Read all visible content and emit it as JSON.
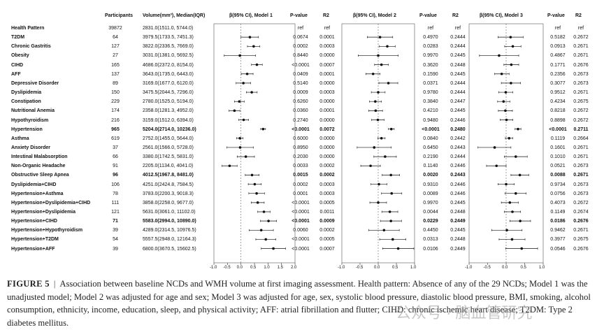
{
  "headers": {
    "participants": "Participants",
    "volume": "Volume(mm³), Median(IQR)",
    "model1": "β(95% CI), Model 1",
    "model2": "β(95% CI), Model 2",
    "model3": "β(95% CI), Model 3",
    "pvalue": "P-value",
    "r2": "R2"
  },
  "rows": [
    {
      "name": "Health Pattern",
      "n": "39872",
      "vol": "2831.0(1511.0, 5744.0)",
      "bold": false,
      "m1": {
        "b": null,
        "p": "ref",
        "r2": "ref"
      },
      "m2": {
        "b": null,
        "p": "ref",
        "r2": "ref"
      },
      "m3": {
        "b": null,
        "p": "ref",
        "r2": "ref"
      }
    },
    {
      "name": "T2DM",
      "n": "64",
      "vol": "3979.5(1733.5, 7451.3)",
      "bold": false,
      "m1": {
        "b": 0.33,
        "lo": 0.0,
        "hi": 0.65,
        "p": "0.0674",
        "r2": "0.0001"
      },
      "m2": {
        "b": 0.05,
        "lo": -0.3,
        "hi": 0.4,
        "p": "0.4970",
        "r2": "0.2444"
      },
      "m3": {
        "b": 0.12,
        "lo": -0.22,
        "hi": 0.46,
        "p": "0.5182",
        "r2": "0.2672"
      }
    },
    {
      "name": "Chronic Gastritis",
      "n": "127",
      "vol": "3822.0(2336.5, 7669.0)",
      "bold": false,
      "m1": {
        "b": 0.47,
        "lo": 0.24,
        "hi": 0.7,
        "p": "0.0002",
        "r2": "0.0003"
      },
      "m2": {
        "b": 0.25,
        "lo": 0.03,
        "hi": 0.47,
        "p": "0.0283",
        "r2": "0.2444"
      },
      "m3": {
        "b": 0.18,
        "lo": -0.04,
        "hi": 0.4,
        "p": "0.0913",
        "r2": "0.2671"
      }
    },
    {
      "name": "Obesity",
      "n": "27",
      "vol": "3031.0(1381.0, 5692.5)",
      "bold": false,
      "m1": {
        "b": -0.04,
        "lo": -0.62,
        "hi": 0.54,
        "p": "0.8440",
        "r2": "0.0000"
      },
      "m2": {
        "b": 0.0,
        "lo": -0.55,
        "hi": 0.55,
        "p": "0.9970",
        "r2": "0.2445"
      },
      "m3": {
        "b": -0.19,
        "lo": -0.72,
        "hi": 0.34,
        "p": "0.4867",
        "r2": "0.2671"
      }
    },
    {
      "name": "CIHD",
      "n": "165",
      "vol": "4686.0(2372.0, 8154.0)",
      "bold": false,
      "m1": {
        "b": 0.59,
        "lo": 0.39,
        "hi": 0.79,
        "p": "<0.0001",
        "r2": "0.0007"
      },
      "m2": {
        "b": 0.09,
        "lo": -0.1,
        "hi": 0.28,
        "p": "0.3620",
        "r2": "0.2448"
      },
      "m3": {
        "b": 0.14,
        "lo": -0.06,
        "hi": 0.34,
        "p": "0.1771",
        "r2": "0.2676"
      }
    },
    {
      "name": "AFF",
      "n": "137",
      "vol": "3643.0(1735.0, 6443.0)",
      "bold": false,
      "m1": {
        "b": 0.23,
        "lo": 0.01,
        "hi": 0.45,
        "p": "0.0409",
        "r2": "0.0001"
      },
      "m2": {
        "b": -0.14,
        "lo": -0.34,
        "hi": 0.05,
        "p": "0.1590",
        "r2": "0.2445"
      },
      "m3": {
        "b": -0.12,
        "lo": -0.31,
        "hi": 0.08,
        "p": "0.2356",
        "r2": "0.2673"
      }
    },
    {
      "name": "Depressive Disorder",
      "n": "89",
      "vol": "3169.0(1677.0, 6120.0)",
      "bold": false,
      "m1": {
        "b": 0.09,
        "lo": -0.18,
        "hi": 0.36,
        "p": "0.5140",
        "r2": "0.0000"
      },
      "m2": {
        "b": 0.28,
        "lo": 0.02,
        "hi": 0.54,
        "p": "0.0371",
        "r2": "0.2444"
      },
      "m3": {
        "b": 0.13,
        "lo": -0.13,
        "hi": 0.39,
        "p": "0.3077",
        "r2": "0.2673"
      }
    },
    {
      "name": "Dyslipidemia",
      "n": "150",
      "vol": "3475.5(2044.5, 7296.0)",
      "bold": false,
      "m1": {
        "b": 0.4,
        "lo": 0.2,
        "hi": 0.6,
        "p": "0.0009",
        "r2": "0.0003"
      },
      "m2": {
        "b": 0.0,
        "lo": -0.19,
        "hi": 0.19,
        "p": "0.9780",
        "r2": "0.2444"
      },
      "m3": {
        "b": -0.01,
        "lo": -0.2,
        "hi": 0.18,
        "p": "0.9512",
        "r2": "0.2671"
      }
    },
    {
      "name": "Constipation",
      "n": "229",
      "vol": "2780.0(1525.0, 5194.0)",
      "bold": false,
      "m1": {
        "b": -0.06,
        "lo": -0.24,
        "hi": 0.12,
        "p": "0.6260",
        "r2": "0.0000"
      },
      "m2": {
        "b": -0.08,
        "lo": -0.24,
        "hi": 0.09,
        "p": "0.3840",
        "r2": "0.2447"
      },
      "m3": {
        "b": -0.07,
        "lo": -0.23,
        "hi": 0.1,
        "p": "0.4234",
        "r2": "0.2675"
      }
    },
    {
      "name": "Nutritional Anemia",
      "n": "174",
      "vol": "2358.0(1281.3, 4952.0)",
      "bold": false,
      "m1": {
        "b": -0.24,
        "lo": -0.44,
        "hi": -0.04,
        "p": "0.0360",
        "r2": "0.0001"
      },
      "m2": {
        "b": -0.07,
        "lo": -0.26,
        "hi": 0.12,
        "p": "0.4210",
        "r2": "0.2445"
      },
      "m3": {
        "b": -0.02,
        "lo": -0.21,
        "hi": 0.17,
        "p": "0.8218",
        "r2": "0.2672"
      }
    },
    {
      "name": "Hypothyroidism",
      "n": "216",
      "vol": "3159.0(1512.0, 6394.0)",
      "bold": false,
      "m1": {
        "b": 0.1,
        "lo": -0.08,
        "hi": 0.28,
        "p": "0.2740",
        "r2": "0.0000"
      },
      "m2": {
        "b": -0.01,
        "lo": -0.18,
        "hi": 0.16,
        "p": "0.9480",
        "r2": "0.2446"
      },
      "m3": {
        "b": 0.01,
        "lo": -0.16,
        "hi": 0.18,
        "p": "0.8898",
        "r2": "0.2672"
      }
    },
    {
      "name": "Hypertension",
      "n": "965",
      "vol": "5204.0(2714.0, 10236.0)",
      "bold": true,
      "m1": {
        "b": 0.82,
        "lo": 0.73,
        "hi": 0.91,
        "p": "<0.0001",
        "r2": "0.0072"
      },
      "m2": {
        "b": 0.36,
        "lo": 0.28,
        "hi": 0.44,
        "p": "<0.0001",
        "r2": "0.2480"
      },
      "m3": {
        "b": 0.32,
        "lo": 0.24,
        "hi": 0.4,
        "p": "<0.0001",
        "r2": "0.2711"
      }
    },
    {
      "name": "Asthma",
      "n": "619",
      "vol": "2752.0(1455.0, 5644.0)",
      "bold": false,
      "m1": {
        "b": -0.04,
        "lo": -0.16,
        "hi": 0.08,
        "p": "0.6000",
        "r2": "0.0000"
      },
      "m2": {
        "b": 0.09,
        "lo": -0.01,
        "hi": 0.19,
        "p": "0.0840",
        "r2": "0.2442"
      },
      "m3": {
        "b": 0.08,
        "lo": -0.02,
        "hi": 0.18,
        "p": "0.1119",
        "r2": "0.2664"
      }
    },
    {
      "name": "Anxiety Disorder",
      "n": "37",
      "vol": "2561.0(1566.0, 5728.0)",
      "bold": false,
      "m1": {
        "b": -0.03,
        "lo": -0.52,
        "hi": 0.46,
        "p": "0.8950",
        "r2": "0.0000"
      },
      "m2": {
        "b": -0.11,
        "lo": -0.58,
        "hi": 0.36,
        "p": "0.6450",
        "r2": "0.2443"
      },
      "m3": {
        "b": -0.31,
        "lo": -0.76,
        "hi": 0.13,
        "p": "0.1601",
        "r2": "0.2671"
      }
    },
    {
      "name": "Intestinal Malabsorption",
      "n": "66",
      "vol": "3380.0(1742.5, 5831.0)",
      "bold": false,
      "m1": {
        "b": 0.18,
        "lo": -0.14,
        "hi": 0.5,
        "p": "0.2030",
        "r2": "0.0000"
      },
      "m2": {
        "b": 0.19,
        "lo": -0.12,
        "hi": 0.5,
        "p": "0.2190",
        "r2": "0.2444"
      },
      "m3": {
        "b": 0.26,
        "lo": -0.05,
        "hi": 0.57,
        "p": "0.1010",
        "r2": "0.2671"
      }
    },
    {
      "name": "Non-Organic Headache",
      "n": "91",
      "vol": "2205.0(1134.0, 4041.0)",
      "bold": false,
      "m1": {
        "b": -0.42,
        "lo": -0.7,
        "hi": -0.14,
        "p": "0.0033",
        "r2": "0.0002"
      },
      "m2": {
        "b": -0.21,
        "lo": -0.48,
        "hi": 0.06,
        "p": "0.1140",
        "r2": "0.2446"
      },
      "m3": {
        "b": -0.26,
        "lo": -0.53,
        "hi": 0.0,
        "p": "0.0521",
        "r2": "0.2673"
      }
    },
    {
      "name": "Obstructive Sleep Apnea",
      "n": "96",
      "vol": "4012.5(1967.8, 8481.0)",
      "bold": true,
      "m1": {
        "b": 0.41,
        "lo": 0.16,
        "hi": 0.67,
        "p": "0.0015",
        "r2": "0.0002"
      },
      "m2": {
        "b": 0.35,
        "lo": 0.11,
        "hi": 0.59,
        "p": "0.0020",
        "r2": "0.2443"
      },
      "m3": {
        "b": 0.37,
        "lo": 0.13,
        "hi": 0.61,
        "p": "0.0088",
        "r2": "0.2671"
      }
    },
    {
      "name": "Dyslipidemia+CIHD",
      "n": "106",
      "vol": "4251.0(2424.8, 7584.5)",
      "bold": false,
      "m1": {
        "b": 0.51,
        "lo": 0.27,
        "hi": 0.75,
        "p": "0.0002",
        "r2": "0.0003"
      },
      "m2": {
        "b": 0.02,
        "lo": -0.2,
        "hi": 0.24,
        "p": "0.9310",
        "r2": "0.2446"
      },
      "m3": {
        "b": 0.0,
        "lo": -0.22,
        "hi": 0.22,
        "p": "0.9734",
        "r2": "0.2673"
      }
    },
    {
      "name": "Hypertension+Asthma",
      "n": "78",
      "vol": "3783.0(2200.3, 9018.3)",
      "bold": false,
      "m1": {
        "b": 0.58,
        "lo": 0.29,
        "hi": 0.87,
        "p": "0.0001",
        "r2": "0.0003"
      },
      "m2": {
        "b": 0.37,
        "lo": 0.09,
        "hi": 0.65,
        "p": "0.0089",
        "r2": "0.2446"
      },
      "m3": {
        "b": 0.26,
        "lo": -0.03,
        "hi": 0.54,
        "p": "0.0756",
        "r2": "0.2673"
      }
    },
    {
      "name": "Hypertension+Dyslipidemia+CIHD",
      "n": "111",
      "vol": "3858.0(2258.0, 9677.0)",
      "bold": false,
      "m1": {
        "b": 0.62,
        "lo": 0.38,
        "hi": 0.86,
        "p": "<0.0001",
        "r2": "0.0005"
      },
      "m2": {
        "b": 0.0,
        "lo": -0.23,
        "hi": 0.23,
        "p": "0.9970",
        "r2": "0.2445"
      },
      "m3": {
        "b": 0.1,
        "lo": -0.13,
        "hi": 0.33,
        "p": "0.4073",
        "r2": "0.2672"
      }
    },
    {
      "name": "Hypertension+Dyslipidemia",
      "n": "121",
      "vol": "5631.0(3061.0, 11102.0)",
      "bold": false,
      "m1": {
        "b": 0.85,
        "lo": 0.62,
        "hi": 1.08,
        "p": "<0.0001",
        "r2": "0.0011"
      },
      "m2": {
        "b": 0.32,
        "lo": 0.1,
        "hi": 0.54,
        "p": "0.0044",
        "r2": "0.2448"
      },
      "m3": {
        "b": 0.17,
        "lo": -0.05,
        "hi": 0.39,
        "p": "0.1149",
        "r2": "0.2674"
      }
    },
    {
      "name": "Hypertension+CIHD",
      "n": "71",
      "vol": "5583.0(2994.0, 10890.0)",
      "bold": true,
      "m1": {
        "b": 1.02,
        "lo": 0.72,
        "hi": 1.32,
        "p": "<0.0001",
        "r2": "0.0009"
      },
      "m2": {
        "b": 0.35,
        "lo": 0.06,
        "hi": 0.64,
        "p": "0.0229",
        "r2": "0.2449"
      },
      "m3": {
        "b": 0.38,
        "lo": 0.1,
        "hi": 0.66,
        "p": "0.0186",
        "r2": "0.2676"
      }
    },
    {
      "name": "Hypertension+Hypothyroidism",
      "n": "39",
      "vol": "4289.0(2314.5, 10976.5)",
      "bold": false,
      "m1": {
        "b": 0.75,
        "lo": 0.3,
        "hi": 1.2,
        "p": "0.0060",
        "r2": "0.0002"
      },
      "m2": {
        "b": 0.16,
        "lo": -0.26,
        "hi": 0.58,
        "p": "0.4450",
        "r2": "0.2445"
      },
      "m3": {
        "b": 0.02,
        "lo": -0.39,
        "hi": 0.43,
        "p": "0.9462",
        "r2": "0.2671"
      }
    },
    {
      "name": "Hypertension+T2DM",
      "n": "54",
      "vol": "5557.5(2948.0, 12164.3)",
      "bold": false,
      "m1": {
        "b": 0.92,
        "lo": 0.55,
        "hi": 1.29,
        "p": "<0.0001",
        "r2": "0.0005"
      },
      "m2": {
        "b": 0.4,
        "lo": 0.04,
        "hi": 0.76,
        "p": "0.0313",
        "r2": "0.2448"
      },
      "m3": {
        "b": 0.16,
        "lo": -0.19,
        "hi": 0.51,
        "p": "0.3977",
        "r2": "0.2675"
      }
    },
    {
      "name": "Hypertension+AFF",
      "n": "39",
      "vol": "6800.0(3670.5, 15602.5)",
      "bold": false,
      "m1": {
        "b": 1.2,
        "lo": 0.75,
        "hi": 1.65,
        "p": "<0.0001",
        "r2": "0.0007"
      },
      "m2": {
        "b": 0.55,
        "lo": 0.12,
        "hi": 0.98,
        "p": "0.0106",
        "r2": "0.2449"
      },
      "m3": {
        "b": 0.42,
        "lo": -0.01,
        "hi": 0.85,
        "p": "0.0546",
        "r2": "0.2676"
      }
    }
  ],
  "chart_data": [
    {
      "type": "scatter",
      "title": "β(95% CI), Model 1",
      "xlim": [
        -1.0,
        2.0
      ],
      "xticks": [
        "-1.0",
        "-0.5",
        "0.0",
        "0.5",
        "1.0",
        "1.5",
        "2.0"
      ],
      "ref_line": 0
    },
    {
      "type": "scatter",
      "title": "β(95% CI), Model 2",
      "xlim": [
        -1.0,
        1.0
      ],
      "xticks": [
        "-1.0",
        "-0.5",
        "0.0",
        "0.5",
        "1.0"
      ],
      "ref_line": 0
    },
    {
      "type": "scatter",
      "title": "β(95% CI), Model 3",
      "xlim": [
        -1.0,
        1.0
      ],
      "xticks": [
        "-1.0",
        "-0.5",
        "0.0",
        "0.5",
        "1.0"
      ],
      "ref_line": 0
    }
  ],
  "caption": {
    "label": "FIGURE 5",
    "separator": "|",
    "text": "Association between baseline NCDs and WMH volume at first imaging assessment. Health pattern: Absence of any of the 29 NCDs; Model 1 was the unadjusted model; Model 2 was adjusted for age and sex; Model 3 was adjusted for age, sex, systolic blood pressure, diastolic blood pressure, BMI, smoking, alcohol consumption, ethnicity, income, education, sleep, and physical activity; AFF: atrial fibrillation and flutter; CIHD: chronic ischemic heart disease; T2DM: Type 2 diabetes mellitus."
  },
  "watermark": "公众号 · 脑血管研究"
}
